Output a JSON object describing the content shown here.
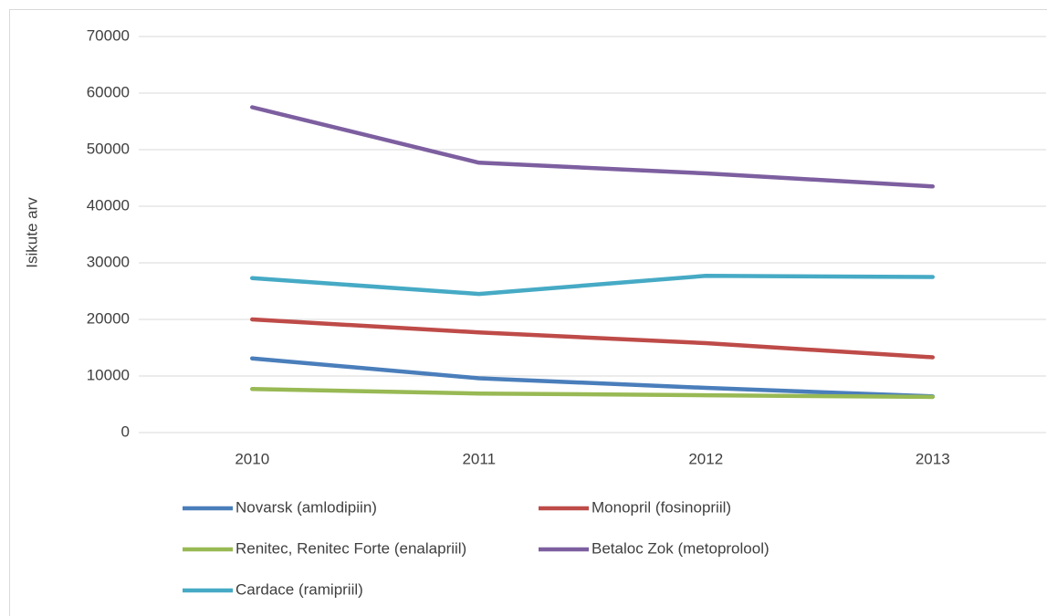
{
  "chart_data": {
    "type": "line",
    "y_label": "Isikute arv",
    "categories": [
      "2010",
      "2011",
      "2012",
      "2013"
    ],
    "series": [
      {
        "name": "Novarsk (amlodipiin)",
        "color": "#4a7ebb",
        "values": [
          13100,
          9600,
          7900,
          6400
        ]
      },
      {
        "name": "Monopril (fosinopriil)",
        "color": "#be4b48",
        "values": [
          20000,
          17700,
          15800,
          13300
        ]
      },
      {
        "name": "Renitec, Renitec Forte (enalapriil)",
        "color": "#98b954",
        "values": [
          7700,
          6900,
          6600,
          6300
        ]
      },
      {
        "name": "Betaloc Zok (metoprolool)",
        "color": "#7d5fa0",
        "values": [
          57500,
          47700,
          45800,
          43500
        ]
      },
      {
        "name": "Cardace (ramipriil)",
        "color": "#46aac5",
        "values": [
          27300,
          24500,
          27700,
          27500
        ]
      }
    ],
    "ylim": [
      0,
      70000
    ],
    "yticks": [
      0,
      10000,
      20000,
      30000,
      40000,
      50000,
      60000,
      70000
    ],
    "grid": true
  }
}
